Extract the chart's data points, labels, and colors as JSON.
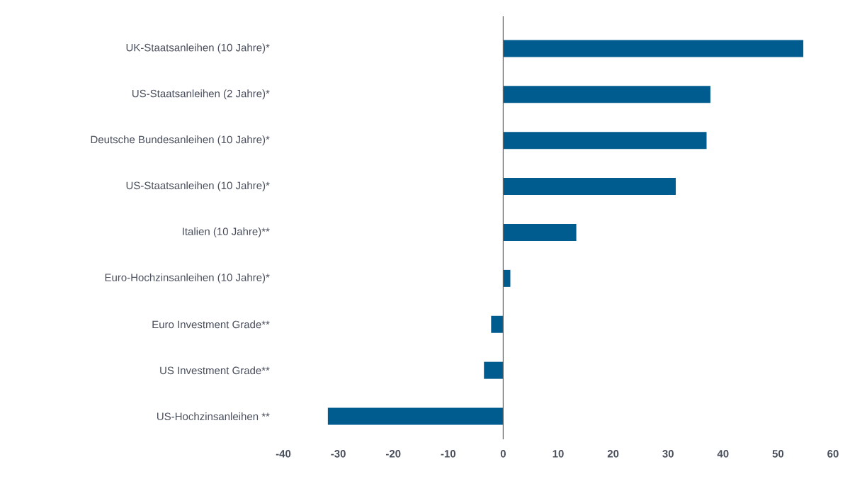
{
  "chart_data": {
    "type": "bar",
    "orientation": "horizontal",
    "categories": [
      "UK-Staatsanleihen (10 Jahre)*",
      "US-Staatsanleihen (2 Jahre)*",
      "Deutsche Bundesanleihen (10 Jahre)*",
      "US-Staatsanleihen (10 Jahre)*",
      "Italien (10 Jahre)**",
      "Euro-Hochzinsanleihen (10 Jahre)*",
      "Euro Investment Grade**",
      "US Investment Grade**",
      "US-Hochzinsanleihen **"
    ],
    "values": [
      54.6,
      37.7,
      37.0,
      31.4,
      13.3,
      1.3,
      -2.2,
      -3.5,
      -31.9
    ],
    "color": "#005b8f",
    "xlim": [
      -40,
      60
    ],
    "xticks": [
      -40,
      -30,
      -20,
      -10,
      0,
      10,
      20,
      30,
      40,
      50,
      60
    ]
  }
}
